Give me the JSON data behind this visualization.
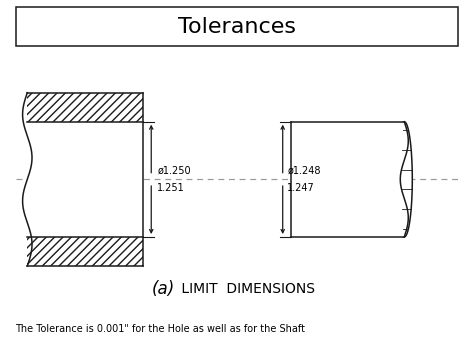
{
  "title": "Tolerances",
  "bg_color": "#ffffff",
  "hole_label_top": "ø1.250",
  "hole_label_bot": "1.251",
  "shaft_label_top": "ø1.248",
  "shaft_label_bot": "1.247",
  "caption_italic": "(a)",
  "caption_normal": " LIMIT  DIMENSIONS",
  "footnote": "The Tolerance is 0.001\" for the Hole as well as for the Shaft",
  "line_color": "#1a1a1a",
  "dashed_color": "#999999",
  "hatch_density": "////",
  "title_fontsize": 16,
  "caption_fontsize": 10,
  "footnote_fontsize": 7,
  "label_fontsize": 7
}
